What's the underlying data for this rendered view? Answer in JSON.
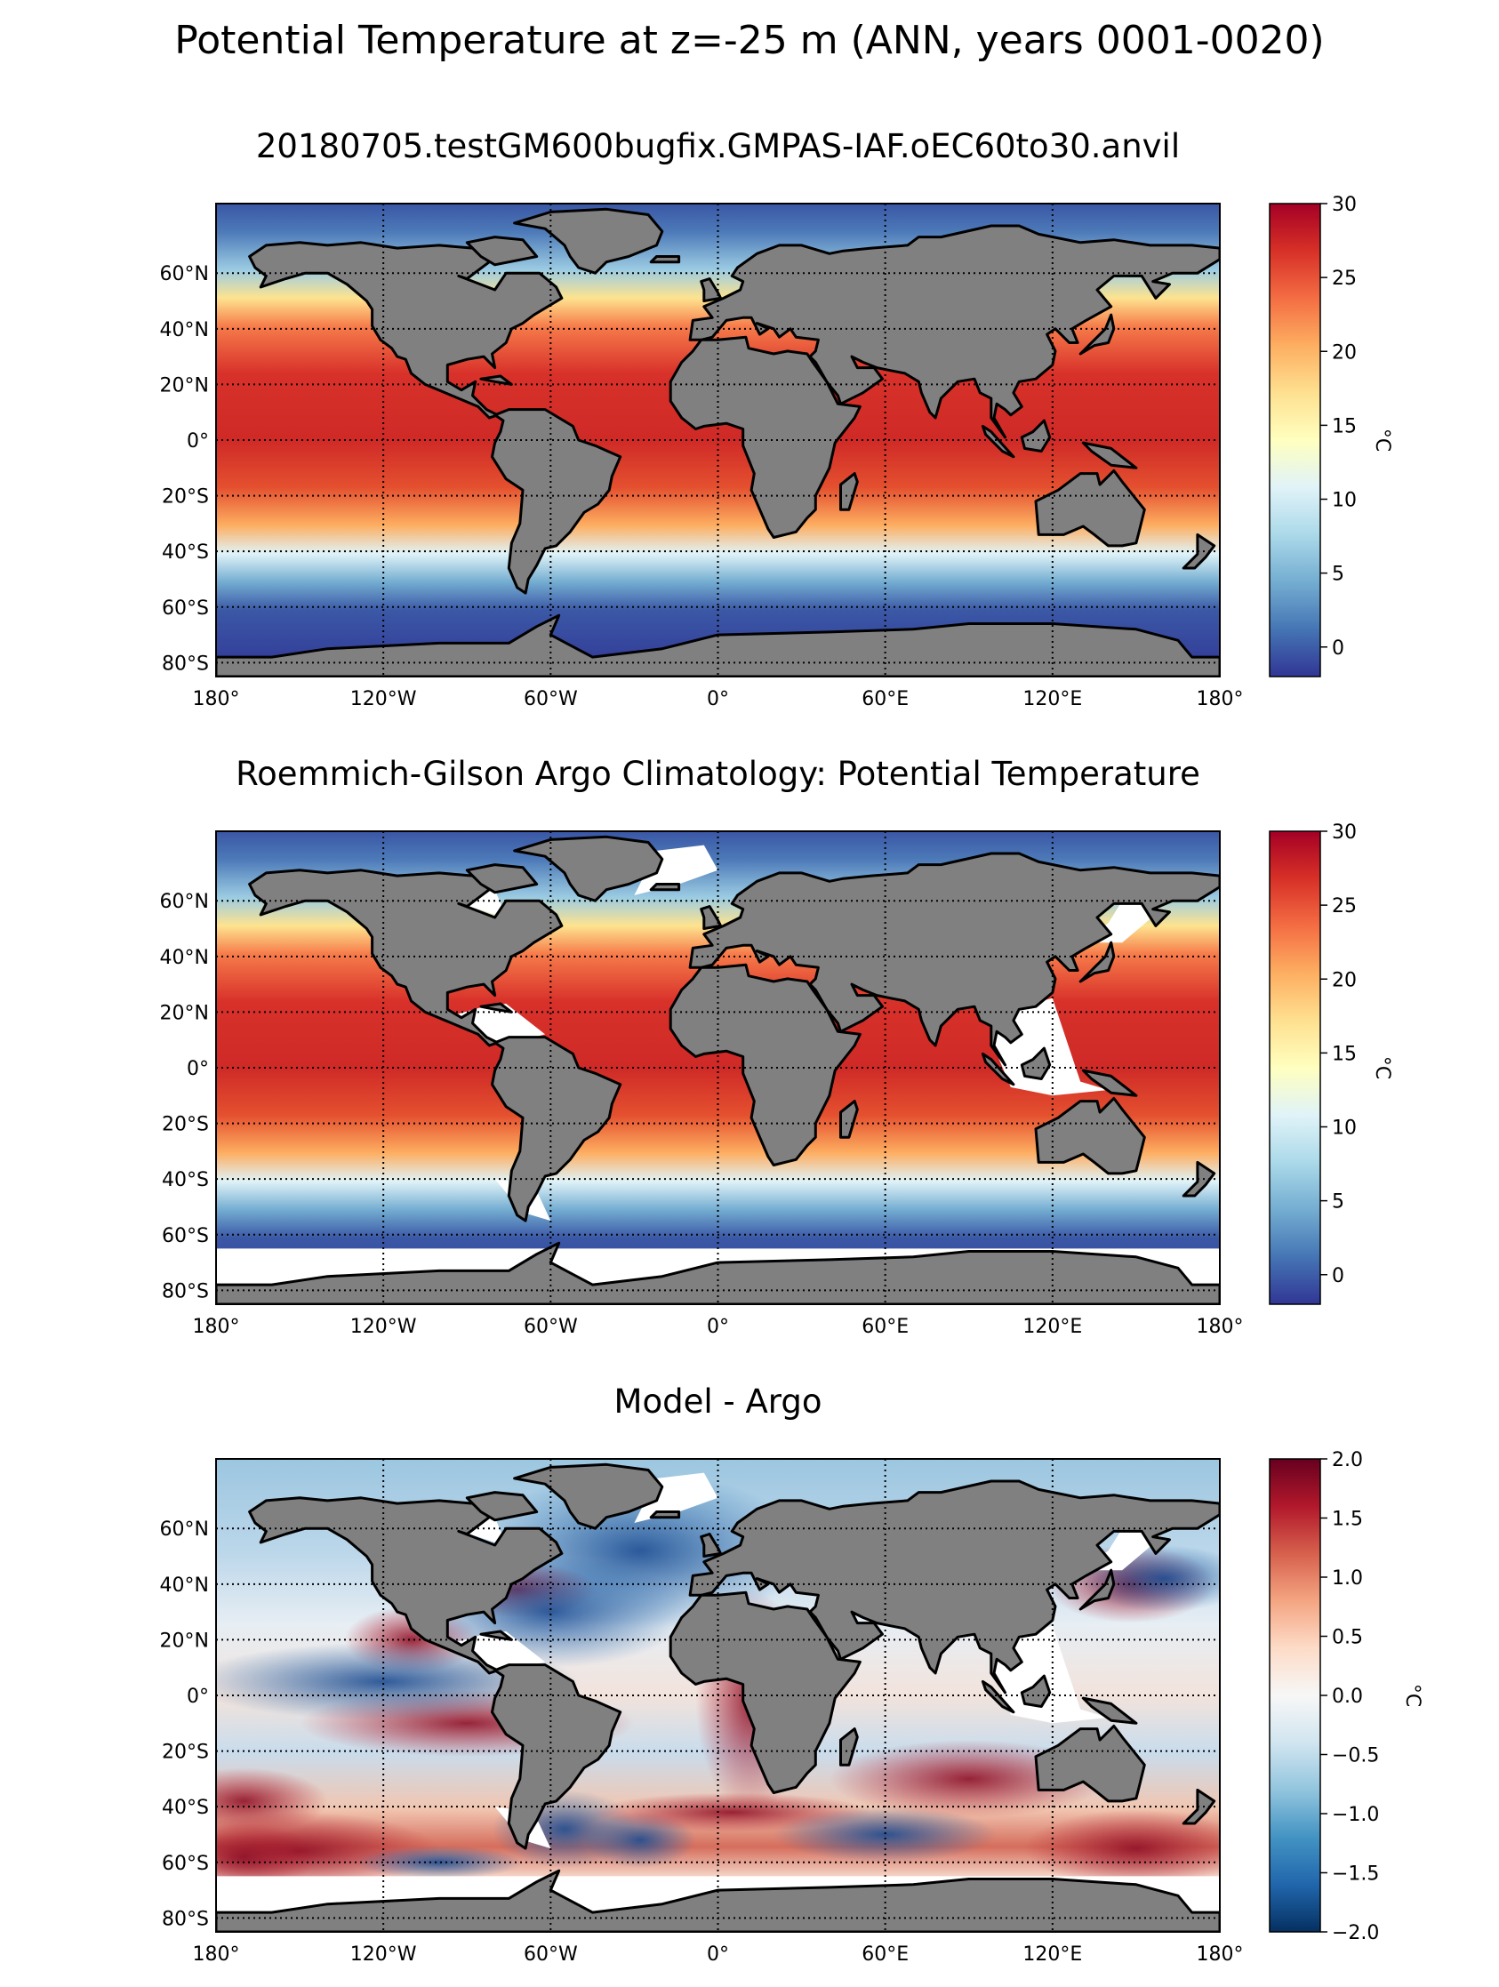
{
  "figure": {
    "suptitle": "Potential Temperature at z=-25 m (ANN, years 0001-0020)"
  },
  "panels": [
    {
      "title": "20180705.testGM600bugfix.GMPAS-IAF.oEC60to30.anvil",
      "colormap": "RdYlBu_r",
      "colorbar": {
        "label": "°C",
        "range": [
          -2,
          30
        ],
        "ticks": [
          "0",
          "5",
          "10",
          "15",
          "20",
          "25",
          "30"
        ]
      },
      "missing_data": "none"
    },
    {
      "title": "Roemmich-Gilson Argo Climatology: Potential Temperature",
      "colormap": "RdYlBu_r",
      "colorbar": {
        "label": "°C",
        "range": [
          -2,
          30
        ],
        "ticks": [
          "0",
          "5",
          "10",
          "15",
          "20",
          "25",
          "30"
        ]
      },
      "missing_data": "white south of 65°S and in marginal seas"
    },
    {
      "title": "Model - Argo",
      "colormap": "RdBu_r",
      "colorbar": {
        "label": "°C",
        "range": [
          -2,
          2
        ],
        "ticks": [
          "−2.0",
          "−1.5",
          "−1.0",
          "−0.5",
          "0.0",
          "0.5",
          "1.0",
          "1.5",
          "2.0"
        ]
      },
      "missing_data": "white south of 65°S and in marginal seas"
    }
  ],
  "map_axes": {
    "projection": "PlateCarree",
    "lon_range": [
      -180,
      180
    ],
    "lat_range": [
      -85,
      85
    ],
    "lon_ticks": [
      {
        "value": -180,
        "label": "180°"
      },
      {
        "value": -120,
        "label": "120°W"
      },
      {
        "value": -60,
        "label": "60°W"
      },
      {
        "value": 0,
        "label": "0°"
      },
      {
        "value": 60,
        "label": "60°E"
      },
      {
        "value": 120,
        "label": "120°E"
      },
      {
        "value": 180,
        "label": "180°"
      }
    ],
    "lat_ticks": [
      {
        "value": 60,
        "label": "60°N"
      },
      {
        "value": 40,
        "label": "40°N"
      },
      {
        "value": 20,
        "label": "20°N"
      },
      {
        "value": 0,
        "label": "0°"
      },
      {
        "value": -20,
        "label": "20°S"
      },
      {
        "value": -40,
        "label": "40°S"
      },
      {
        "value": -60,
        "label": "60°S"
      },
      {
        "value": -80,
        "label": "80°S"
      }
    ],
    "gridlines": "dotted",
    "land_color": "#808080",
    "coastline_color": "#000000"
  }
}
